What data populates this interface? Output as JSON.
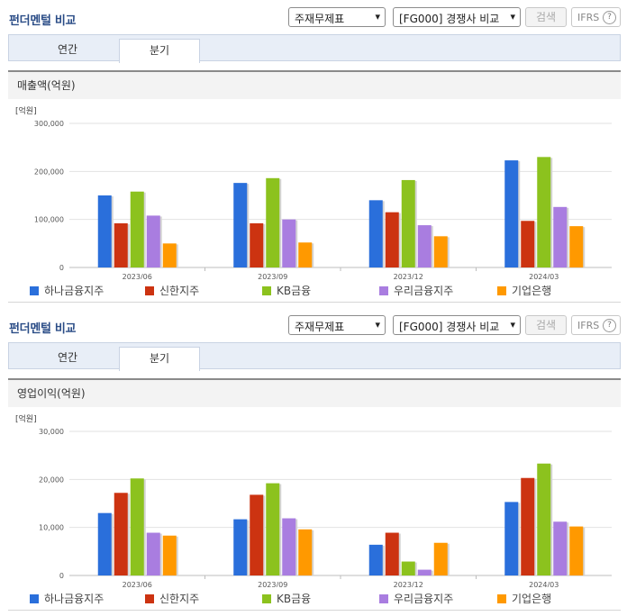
{
  "panels": [
    {
      "header": {
        "title": "펀더멘털 비교",
        "select_type": "주재무제표",
        "select_compare": "[FG000] 경쟁사 비교",
        "search_label": "검색",
        "ifrs_label": "IFRS",
        "help_glyph": "?"
      },
      "tabs": {
        "annual": "연간",
        "quarter": "분기"
      },
      "chart_title": "매출액(억원)",
      "legend_chevron": "▾"
    },
    {
      "header": {
        "title": "펀더멘털 비교",
        "select_type": "주재무제표",
        "select_compare": "[FG000] 경쟁사 비교",
        "search_label": "검색",
        "ifrs_label": "IFRS",
        "help_glyph": "?"
      },
      "tabs": {
        "annual": "연간",
        "quarter": "분기"
      },
      "chart_title": "영업이익(억원)",
      "legend_chevron": "▾"
    }
  ],
  "chart_data": [
    {
      "type": "bar",
      "unit_label": "[억원]",
      "categories": [
        "2023/06",
        "2023/09",
        "2023/12",
        "2024/03"
      ],
      "ylim": [
        0,
        300000
      ],
      "yticks": [
        0,
        100000,
        200000,
        300000
      ],
      "ytick_labels": [
        "0",
        "100,000",
        "200,000",
        "300,000"
      ],
      "legend_position": "bottom",
      "series": [
        {
          "name": "하나금융지주",
          "color": "#2a6fdb",
          "values": [
            150000,
            176000,
            140000,
            223000
          ]
        },
        {
          "name": "신한지주",
          "color": "#cc3311",
          "values": [
            92000,
            92000,
            115000,
            97000
          ]
        },
        {
          "name": "KB금융",
          "color": "#8cc21e",
          "values": [
            158000,
            186000,
            182000,
            230000
          ]
        },
        {
          "name": "우리금융지주",
          "color": "#a97de0",
          "values": [
            108000,
            100000,
            88000,
            126000
          ]
        },
        {
          "name": "기업은행",
          "color": "#ff9900",
          "values": [
            50000,
            52000,
            65000,
            86000
          ]
        }
      ]
    },
    {
      "type": "bar",
      "unit_label": "[억원]",
      "categories": [
        "2023/06",
        "2023/09",
        "2023/12",
        "2024/03"
      ],
      "ylim": [
        0,
        30000
      ],
      "yticks": [
        0,
        10000,
        20000,
        30000
      ],
      "ytick_labels": [
        "0",
        "10,000",
        "20,000",
        "30,000"
      ],
      "legend_position": "bottom",
      "series": [
        {
          "name": "하나금융지주",
          "color": "#2a6fdb",
          "values": [
            13000,
            11700,
            6400,
            15300
          ]
        },
        {
          "name": "신한지주",
          "color": "#cc3311",
          "values": [
            17200,
            16800,
            8900,
            20300
          ]
        },
        {
          "name": "KB금융",
          "color": "#8cc21e",
          "values": [
            20200,
            19200,
            2900,
            23300
          ]
        },
        {
          "name": "우리금융지주",
          "color": "#a97de0",
          "values": [
            8900,
            11900,
            1200,
            11200
          ]
        },
        {
          "name": "기업은행",
          "color": "#ff9900",
          "values": [
            8300,
            9600,
            6800,
            10200
          ]
        }
      ]
    }
  ]
}
